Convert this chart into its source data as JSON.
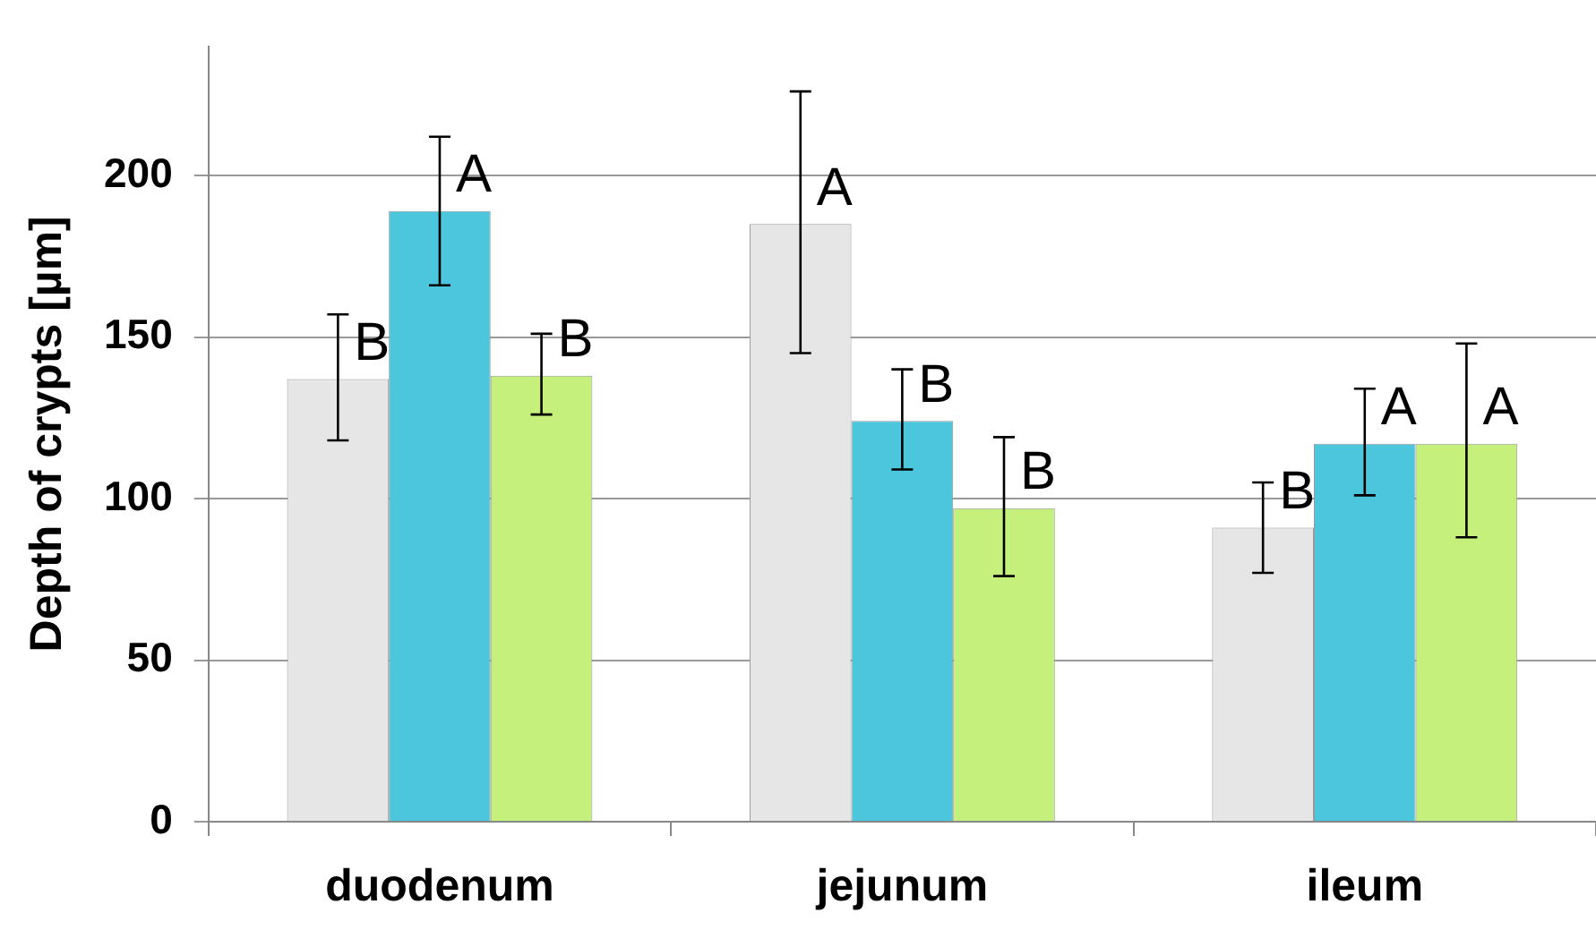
{
  "chart_data": {
    "type": "bar",
    "ylabel": "Depth of crypts [µm]",
    "categories": [
      "duodenum",
      "jejunum",
      "ileum"
    ],
    "series": [
      {
        "color": "#e6e6e6",
        "values": [
          137,
          185,
          91
        ],
        "errors": [
          [
            118,
            157
          ],
          [
            145,
            226
          ],
          [
            77,
            105
          ]
        ],
        "value_labels": [
          "B",
          "A",
          "B"
        ]
      },
      {
        "color": "#4cc6dc",
        "values": [
          189,
          124,
          117
        ],
        "errors": [
          [
            166,
            212
          ],
          [
            109,
            140
          ],
          [
            101,
            134
          ]
        ],
        "value_labels": [
          "A",
          "B",
          "A"
        ]
      },
      {
        "color": "#c6f07c",
        "values": [
          138,
          97,
          117
        ],
        "errors": [
          [
            126,
            151
          ],
          [
            76,
            119
          ],
          [
            88,
            148
          ]
        ],
        "value_labels": [
          "B",
          "B",
          "A"
        ]
      }
    ],
    "ylim": [
      0,
      240
    ],
    "yticks": [
      0,
      50,
      100,
      150,
      200
    ],
    "grid": "y",
    "legend": false
  }
}
